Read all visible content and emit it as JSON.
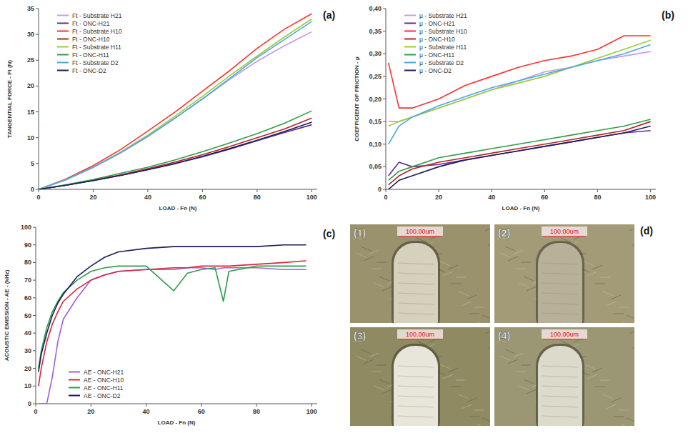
{
  "chart_data": [
    {
      "type": "line",
      "title": "(a)",
      "x_label": "LOAD - Fn (N)",
      "y_label": "TANGENTIAL FORCE - Ft (N)",
      "x": [
        0,
        10,
        20,
        30,
        40,
        50,
        60,
        70,
        80,
        90,
        100
      ],
      "xlim": [
        0,
        102
      ],
      "xticks": [
        0,
        20,
        40,
        60,
        80,
        100
      ],
      "ylim": [
        0,
        35
      ],
      "yticks": [
        0,
        5,
        10,
        15,
        20,
        25,
        30,
        35
      ],
      "grid": false,
      "legend": "top-left",
      "series": [
        {
          "name": "Ft - Substrate H21",
          "color": "#c79be6",
          "values": [
            0,
            1.8,
            4.2,
            7,
            10.2,
            13.8,
            17.5,
            21.3,
            24.8,
            27.8,
            30.5
          ]
        },
        {
          "name": "Ft - ONC-H21",
          "color": "#5b2d96",
          "values": [
            0,
            0.8,
            1.7,
            2.7,
            3.8,
            5,
            6.3,
            7.8,
            9.4,
            11,
            12.5
          ]
        },
        {
          "name": "Ft - Substrate H10",
          "color": "#ff3030",
          "values": [
            0,
            2,
            4.6,
            7.7,
            11.3,
            15,
            19,
            23,
            27.3,
            31,
            34
          ]
        },
        {
          "name": "Ft - ONC-H10",
          "color": "#b82323",
          "values": [
            0,
            0.8,
            1.8,
            2.8,
            4,
            5.3,
            6.7,
            8.3,
            10,
            11.7,
            13.8
          ]
        },
        {
          "name": "Ft - Substrate H11",
          "color": "#9acd32",
          "values": [
            0,
            1.9,
            4.3,
            7.2,
            10.5,
            14.2,
            18,
            22,
            25.8,
            29.5,
            33
          ]
        },
        {
          "name": "Ft - ONC-H11",
          "color": "#2e9e4a",
          "values": [
            0,
            0.9,
            1.9,
            3.1,
            4.3,
            5.7,
            7.3,
            9,
            10.8,
            12.8,
            15.2
          ]
        },
        {
          "name": "Ft - Substrate D2",
          "color": "#4aa8e0",
          "values": [
            0,
            1.9,
            4.3,
            7.1,
            10.3,
            13.8,
            17.5,
            21.5,
            25.5,
            29,
            32.5
          ]
        },
        {
          "name": "Ft - ONC-D2",
          "color": "#1c1c5e",
          "values": [
            0,
            0.8,
            1.7,
            2.7,
            3.8,
            5,
            6.4,
            7.9,
            9.5,
            11.2,
            13
          ]
        }
      ]
    },
    {
      "type": "line",
      "title": "(b)",
      "x_label": "LOAD - Fn (N)",
      "y_label": "COEFFICIENT OF FRICTION - μ",
      "x": [
        1,
        5,
        10,
        20,
        30,
        40,
        50,
        60,
        70,
        80,
        90,
        100
      ],
      "xlim": [
        0,
        102
      ],
      "xticks": [
        0,
        20,
        40,
        60,
        80,
        100
      ],
      "ylim": [
        0,
        0.4
      ],
      "yticks": [
        0,
        {
          "value": 0.05,
          "label": "0,05"
        },
        {
          "value": 0.1,
          "label": "0,10"
        },
        {
          "value": 0.15,
          "label": "0,15"
        },
        {
          "value": 0.2,
          "label": "0,20"
        },
        {
          "value": 0.25,
          "label": "0,25"
        },
        {
          "value": 0.3,
          "label": "0,30"
        },
        {
          "value": 0.35,
          "label": "0,35"
        },
        {
          "value": 0.4,
          "label": "0,40"
        }
      ],
      "grid": false,
      "legend": "top-left",
      "series": [
        {
          "name": "μ - Substrate  H21",
          "color": "#c79be6",
          "values": [
            0.15,
            0.15,
            0.16,
            0.18,
            0.2,
            0.22,
            0.24,
            0.26,
            0.27,
            0.285,
            0.295,
            0.305
          ]
        },
        {
          "name": "μ - ONC-H21",
          "color": "#5b2d96",
          "values": [
            0.03,
            0.06,
            0.05,
            0.055,
            0.065,
            0.075,
            0.085,
            0.095,
            0.105,
            0.115,
            0.125,
            0.13
          ]
        },
        {
          "name": "μ - Substrate H10",
          "color": "#ff3030",
          "values": [
            0.28,
            0.18,
            0.18,
            0.2,
            0.23,
            0.25,
            0.27,
            0.285,
            0.295,
            0.31,
            0.34,
            0.34
          ]
        },
        {
          "name": "μ - ONC-H10",
          "color": "#b82323",
          "values": [
            0.01,
            0.03,
            0.045,
            0.06,
            0.07,
            0.08,
            0.09,
            0.1,
            0.11,
            0.12,
            0.13,
            0.15
          ]
        },
        {
          "name": "μ - Substrate H11",
          "color": "#9acd32",
          "values": [
            0.14,
            0.15,
            0.16,
            0.18,
            0.2,
            0.22,
            0.235,
            0.25,
            0.27,
            0.29,
            0.31,
            0.33
          ]
        },
        {
          "name": "μ - ONC-H11",
          "color": "#2e9e4a",
          "values": [
            0.02,
            0.04,
            0.05,
            0.07,
            0.08,
            0.09,
            0.1,
            0.11,
            0.12,
            0.13,
            0.14,
            0.155
          ]
        },
        {
          "name": "μ - Substrate D2",
          "color": "#4aa8e0",
          "values": [
            0.1,
            0.14,
            0.16,
            0.185,
            0.205,
            0.225,
            0.24,
            0.255,
            0.27,
            0.285,
            0.3,
            0.32
          ]
        },
        {
          "name": "μ - ONC-D2",
          "color": "#1c1c5e",
          "values": [
            0,
            0.02,
            0.03,
            0.05,
            0.065,
            0.075,
            0.085,
            0.095,
            0.105,
            0.115,
            0.125,
            0.14
          ]
        }
      ]
    },
    {
      "type": "line",
      "title": "(c)",
      "x_label": "LOAD - Fn (N)",
      "y_label": "ACOUSTIC EMISSION - AE - (kHz)",
      "x": [
        1,
        2,
        4,
        6,
        8,
        10,
        15,
        20,
        25,
        30,
        40,
        50,
        55,
        60,
        65,
        68,
        70,
        80,
        90,
        98
      ],
      "xlim": [
        0,
        102
      ],
      "xticks": [
        0,
        20,
        40,
        60,
        80,
        100
      ],
      "ylim": [
        0,
        100
      ],
      "yticks": [
        0,
        10,
        20,
        30,
        40,
        50,
        60,
        70,
        80,
        90,
        100
      ],
      "grid": false,
      "legend": "bottom-left",
      "series": [
        {
          "name": "AE - ONC-H21",
          "color": "#a15fd6",
          "values": [
            0,
            0,
            0,
            15,
            35,
            48,
            60,
            70,
            73,
            75,
            76,
            76,
            77,
            77,
            76,
            77,
            77,
            77,
            76,
            76
          ]
        },
        {
          "name": "AE - ONC-H10",
          "color": "#d9263a",
          "values": [
            10,
            20,
            35,
            45,
            52,
            58,
            65,
            70,
            73,
            75,
            76,
            77,
            77,
            78,
            78,
            78,
            78,
            79,
            80,
            81
          ]
        },
        {
          "name": "AE - ONC-H11",
          "color": "#2e9e4a",
          "values": [
            20,
            30,
            43,
            52,
            58,
            63,
            70,
            75,
            77,
            78,
            78,
            64,
            74,
            76,
            77,
            58,
            75,
            78,
            78,
            78
          ]
        },
        {
          "name": "AE - ONC-D2",
          "color": "#1c1c5e",
          "values": [
            18,
            28,
            40,
            50,
            57,
            62,
            72,
            78,
            83,
            86,
            88,
            89,
            89,
            89,
            89,
            89,
            89,
            89,
            90,
            90
          ]
        }
      ]
    }
  ],
  "micrographs": {
    "letter": "(d)",
    "panels": [
      {
        "label": "(1)",
        "scale": "100.00um"
      },
      {
        "label": "(2)",
        "scale": "100.00um"
      },
      {
        "label": "(3)",
        "scale": "100.00um"
      },
      {
        "label": "(4)",
        "scale": "100.00um"
      }
    ]
  }
}
